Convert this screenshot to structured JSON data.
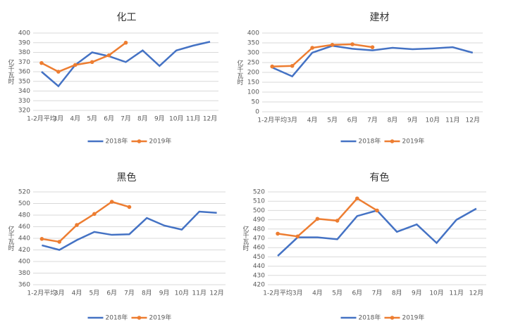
{
  "chart_data": [
    {
      "type": "line",
      "title": "化工",
      "ylabel": "亿千瓦时",
      "categories": [
        "1-2月平均",
        "3月",
        "4月",
        "5月",
        "6月",
        "7月",
        "8月",
        "9月",
        "10月",
        "11月",
        "12月"
      ],
      "ylim": [
        320,
        400
      ],
      "yticks": [
        320,
        330,
        340,
        350,
        360,
        370,
        380,
        390,
        400
      ],
      "grid": true,
      "series": [
        {
          "name": "2018年",
          "color": "#4472c4",
          "values": [
            360,
            345,
            367,
            380,
            376,
            370,
            382,
            366,
            382,
            387,
            391
          ]
        },
        {
          "name": "2019年",
          "color": "#ed7d31",
          "values": [
            369,
            360,
            367,
            370,
            377,
            390,
            null,
            null,
            null,
            null,
            null
          ]
        }
      ]
    },
    {
      "type": "line",
      "title": "建材",
      "ylabel": "亿千瓦时",
      "categories": [
        "1-2月平均",
        "3月",
        "4月",
        "5月",
        "6月",
        "7月",
        "8月",
        "9月",
        "10月",
        "11月",
        "12月"
      ],
      "ylim": [
        0,
        400
      ],
      "yticks": [
        0,
        50,
        100,
        150,
        200,
        250,
        300,
        350,
        400
      ],
      "grid": true,
      "series": [
        {
          "name": "2018年",
          "color": "#4472c4",
          "values": [
            225,
            180,
            300,
            335,
            320,
            312,
            325,
            318,
            322,
            328,
            300
          ]
        },
        {
          "name": "2019年",
          "color": "#ed7d31",
          "values": [
            230,
            233,
            325,
            340,
            343,
            328,
            null,
            null,
            null,
            null,
            null
          ]
        }
      ]
    },
    {
      "type": "line",
      "title": "黑色",
      "ylabel": "亿千瓦时",
      "categories": [
        "1-2月平均",
        "3月",
        "4月",
        "5月",
        "6月",
        "7月",
        "8月",
        "9月",
        "10月",
        "11月",
        "12月"
      ],
      "ylim": [
        360,
        520
      ],
      "yticks": [
        360,
        380,
        400,
        420,
        440,
        460,
        480,
        500,
        520
      ],
      "grid": true,
      "series": [
        {
          "name": "2018年",
          "color": "#4472c4",
          "values": [
            428,
            420,
            437,
            451,
            446,
            447,
            475,
            462,
            455,
            486,
            484
          ]
        },
        {
          "name": "2019年",
          "color": "#ed7d31",
          "values": [
            439,
            434,
            463,
            482,
            503,
            494,
            null,
            null,
            null,
            null,
            null
          ]
        }
      ]
    },
    {
      "type": "line",
      "title": "有色",
      "ylabel": "亿千瓦时",
      "categories": [
        "1-2月平均",
        "3月",
        "4月",
        "5月",
        "6月",
        "7月",
        "8月",
        "9月",
        "10月",
        "11月",
        "12月"
      ],
      "ylim": [
        420,
        520
      ],
      "yticks": [
        420,
        430,
        440,
        450,
        460,
        470,
        480,
        490,
        500,
        510,
        520
      ],
      "grid": true,
      "series": [
        {
          "name": "2018年",
          "color": "#4472c4",
          "values": [
            451,
            471,
            471,
            469,
            494,
            500,
            477,
            485,
            465,
            490,
            502
          ]
        },
        {
          "name": "2019年",
          "color": "#ed7d31",
          "values": [
            475,
            472,
            491,
            489,
            513,
            500,
            null,
            null,
            null,
            null,
            null
          ]
        }
      ]
    }
  ]
}
